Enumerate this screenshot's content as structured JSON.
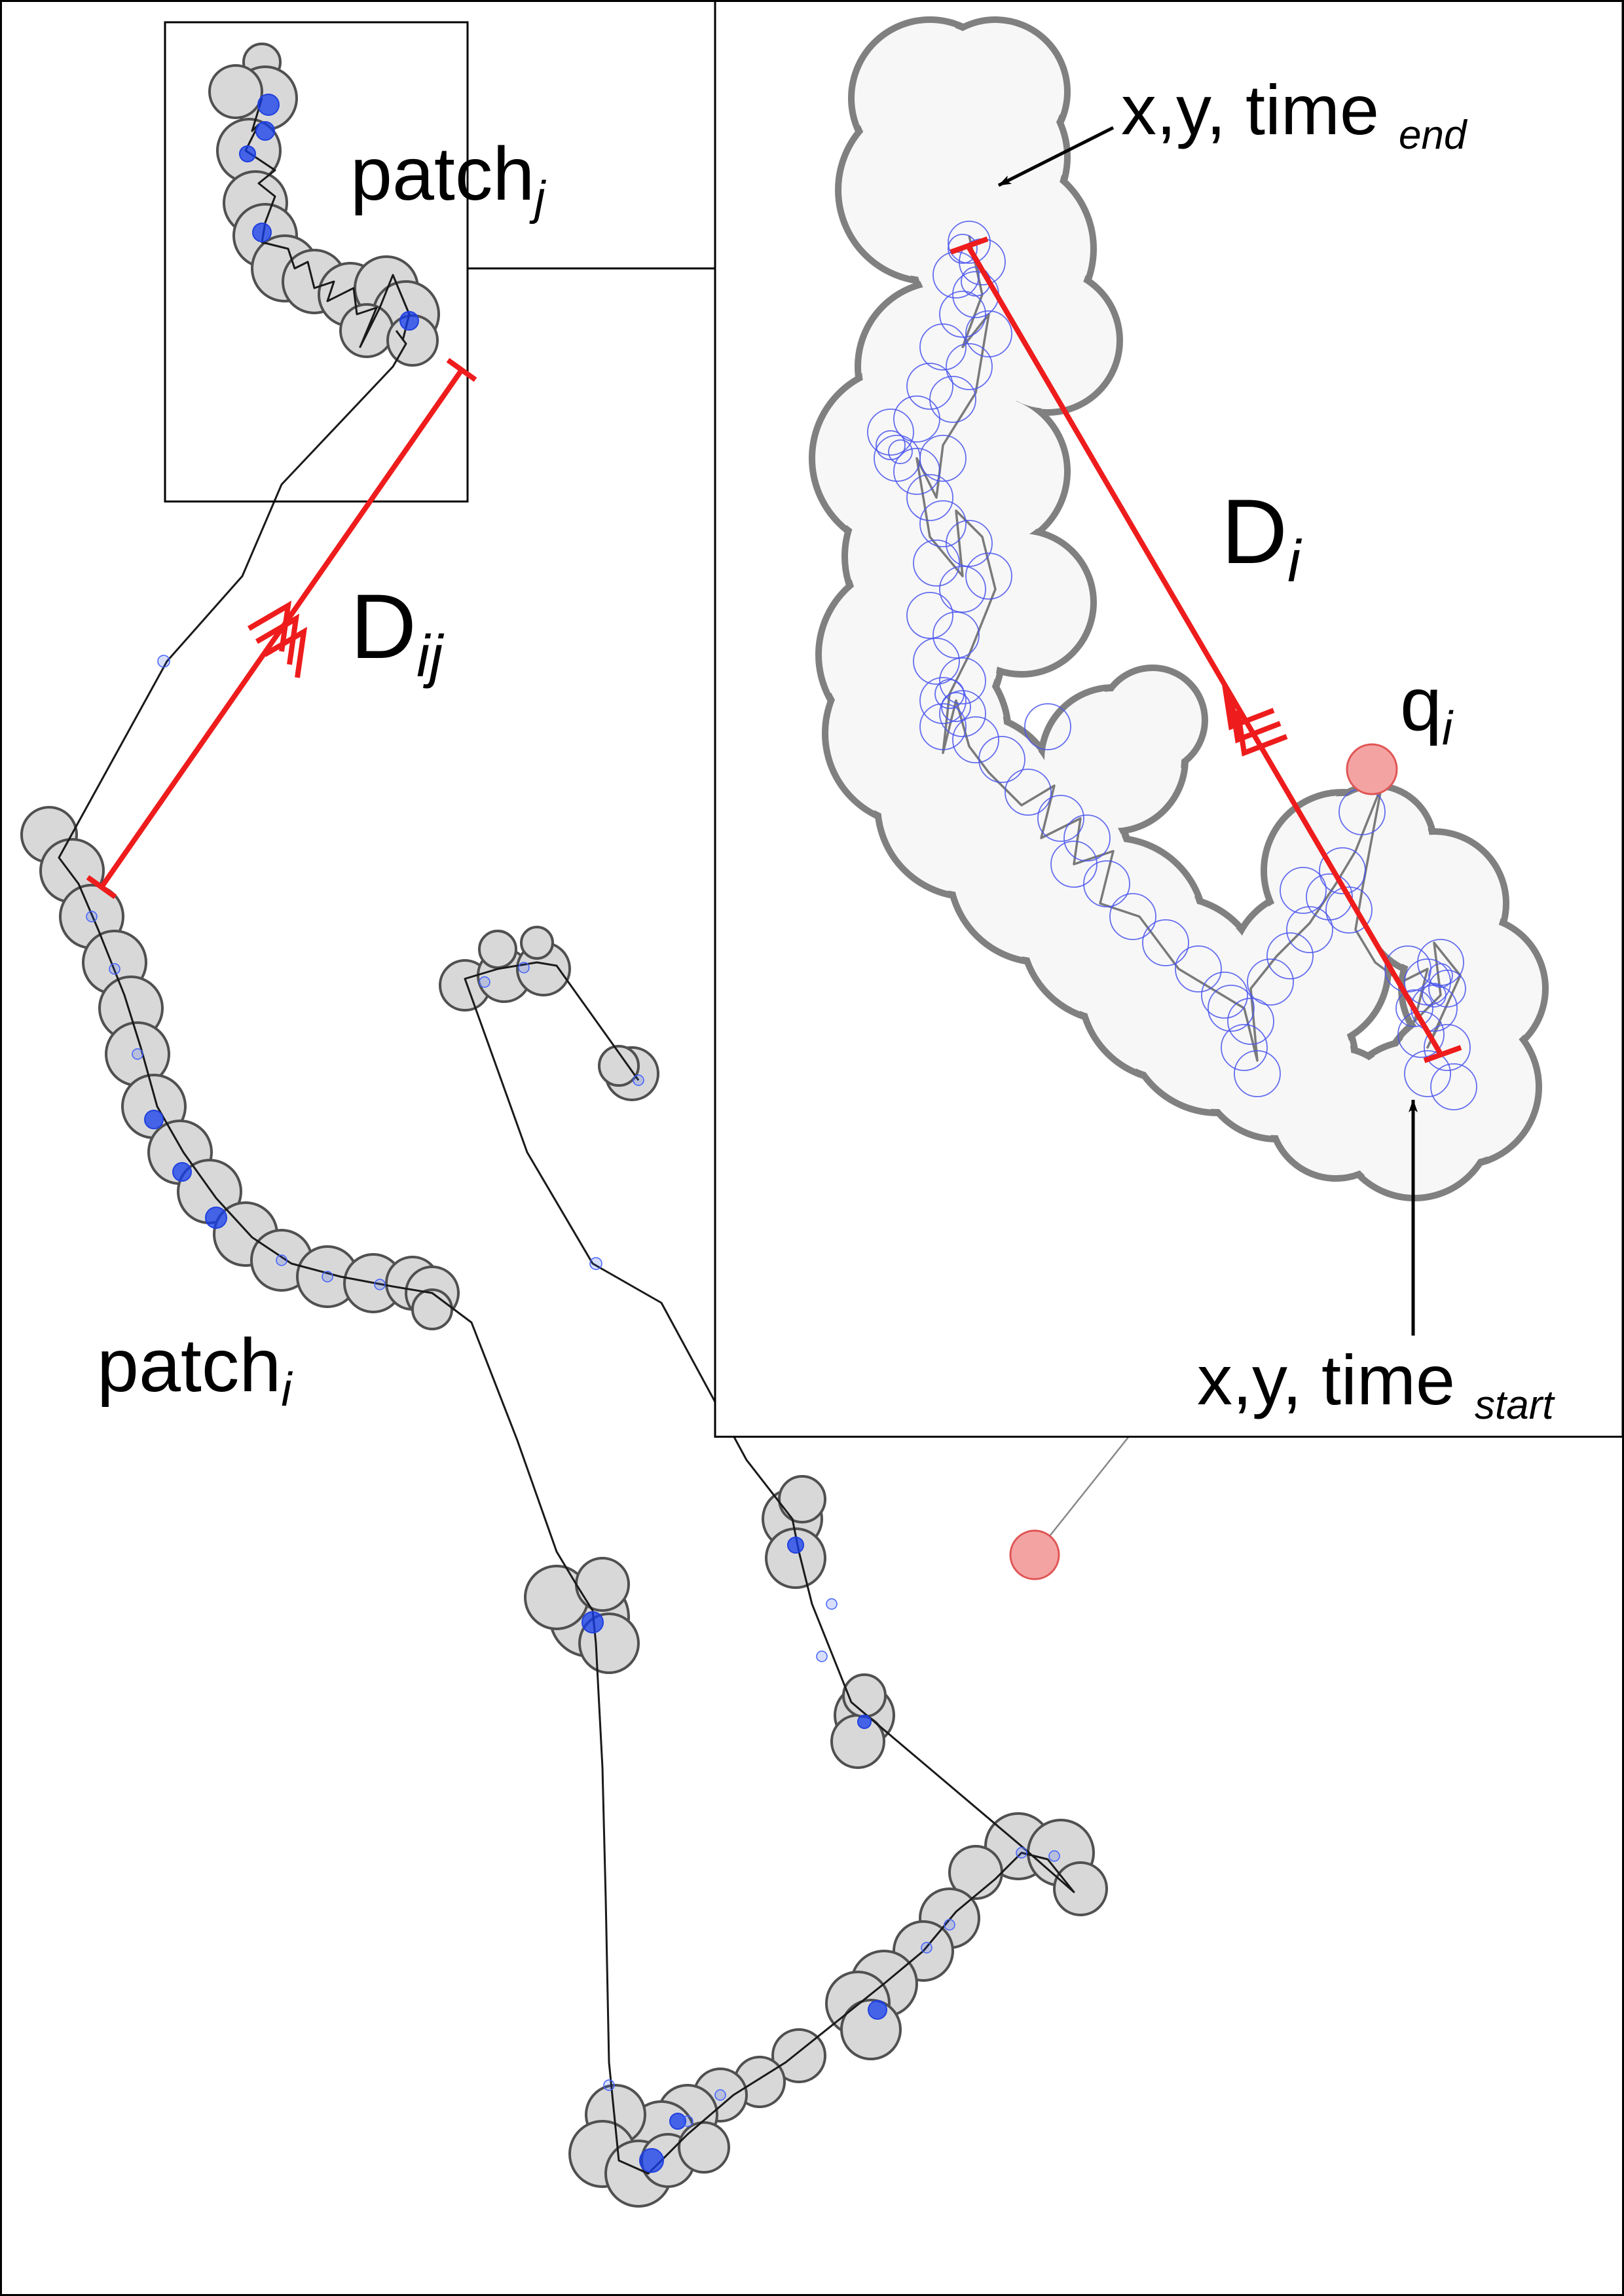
{
  "labels": {
    "patch_j": {
      "base": "patch",
      "sub": "j"
    },
    "patch_i": {
      "base": "patch",
      "sub": "i"
    },
    "d_ij": {
      "base": "D",
      "sub": "ij"
    },
    "d_i": {
      "base": "D",
      "sub": "i"
    },
    "q_i": {
      "base": "q",
      "sub": "i"
    },
    "end_label": {
      "base": "x,y, time ",
      "sub": "end"
    },
    "start_label": {
      "base": "x,y, time ",
      "sub": "start"
    }
  },
  "colors": {
    "distance_line": "#ee1c1c",
    "patch_fill": "#d8d8d8",
    "inset_patch_fill": "#f7f7f7",
    "fix_points": "#2a4cf0",
    "query_point": "#f4a3a3"
  }
}
